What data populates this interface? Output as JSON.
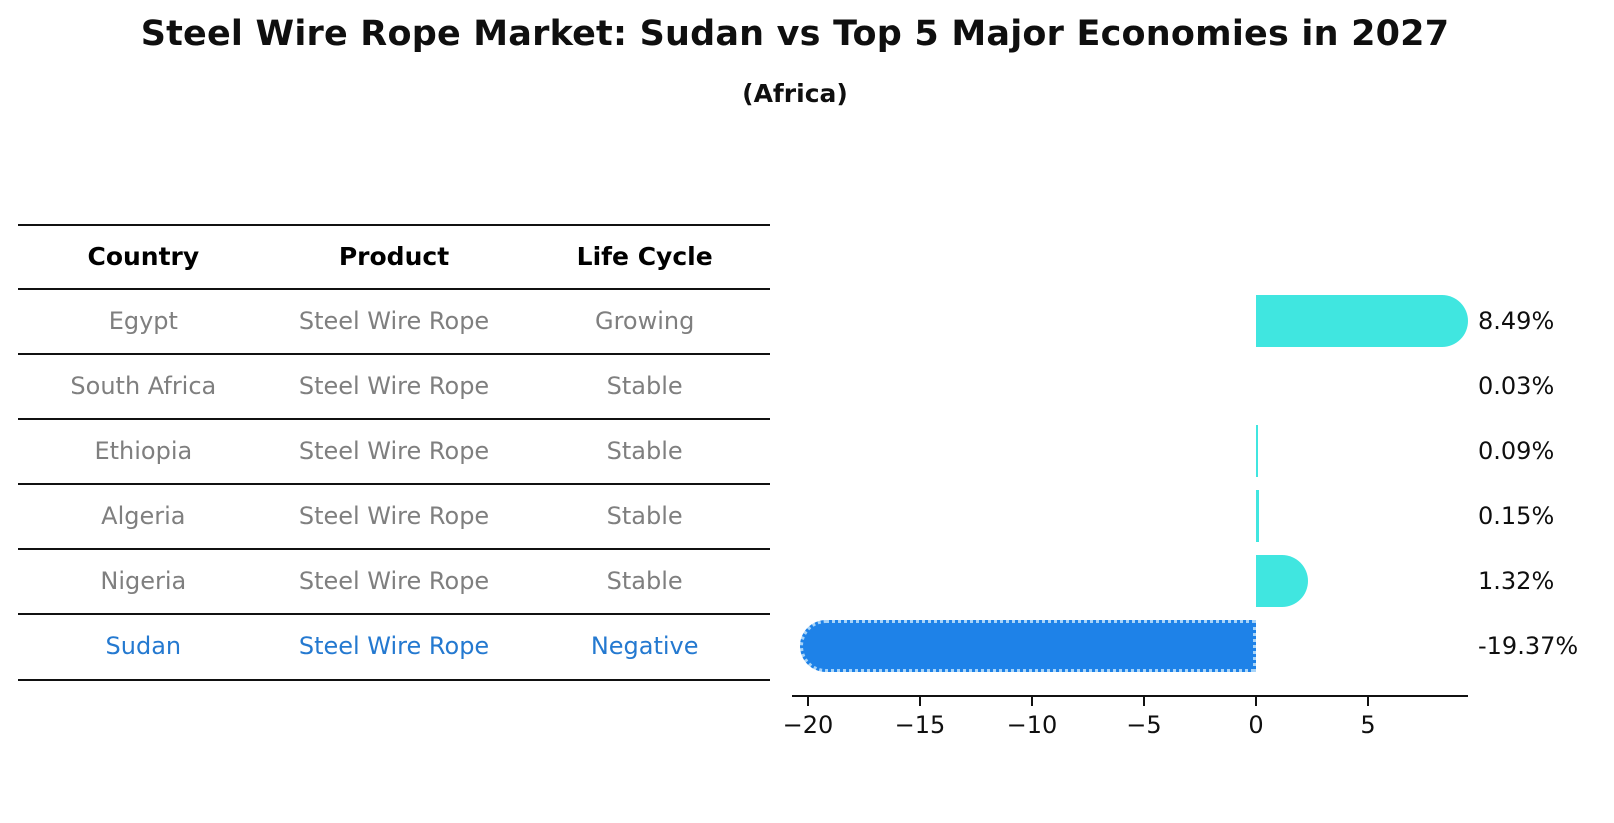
{
  "title": "Steel Wire Rope Market: Sudan vs Top 5 Major Economies in 2027",
  "subtitle": "(Africa)",
  "table": {
    "headers": [
      "Country",
      "Product",
      "Life Cycle"
    ],
    "rows": [
      {
        "country": "Egypt",
        "product": "Steel Wire Rope",
        "life_cycle": "Growing",
        "highlight": false
      },
      {
        "country": "South Africa",
        "product": "Steel Wire Rope",
        "life_cycle": "Stable",
        "highlight": false
      },
      {
        "country": "Ethiopia",
        "product": "Steel Wire Rope",
        "life_cycle": "Stable",
        "highlight": false
      },
      {
        "country": "Algeria",
        "product": "Steel Wire Rope",
        "life_cycle": "Stable",
        "highlight": false
      },
      {
        "country": "Nigeria",
        "product": "Steel Wire Rope",
        "life_cycle": "Stable",
        "highlight": false
      },
      {
        "country": "Sudan",
        "product": "Steel Wire Rope",
        "life_cycle": "Negative",
        "highlight": true
      }
    ]
  },
  "chart_data": {
    "type": "bar",
    "orientation": "horizontal",
    "title": "Steel Wire Rope Market: Sudan vs Top 5 Major Economies in 2027",
    "subtitle": "(Africa)",
    "categories": [
      "Egypt",
      "South Africa",
      "Ethiopia",
      "Algeria",
      "Nigeria",
      "Sudan"
    ],
    "values": [
      8.49,
      0.03,
      0.09,
      0.15,
      1.32,
      -19.37
    ],
    "value_labels": [
      "8.49%",
      "0.03%",
      "0.09%",
      "0.15%",
      "1.32%",
      "-19.37%"
    ],
    "xticks": [
      -20,
      -15,
      -10,
      -5,
      0,
      5
    ],
    "xtick_labels": [
      "−20",
      "−15",
      "−10",
      "−5",
      "0",
      "5"
    ],
    "xlim": [
      -20.7,
      9.5
    ],
    "grid": false,
    "legend": null,
    "highlight_category": "Sudan"
  },
  "colors": {
    "bar_positive": "#40E6E0",
    "bar_highlight": "#1E82E8",
    "bar_highlight_edge": "#A8D4F8",
    "highlight_text": "#2479D0",
    "row_text": "#7F7F7F",
    "header_text": "#111111",
    "axis": "#111111",
    "background": "#FFFFFF"
  }
}
